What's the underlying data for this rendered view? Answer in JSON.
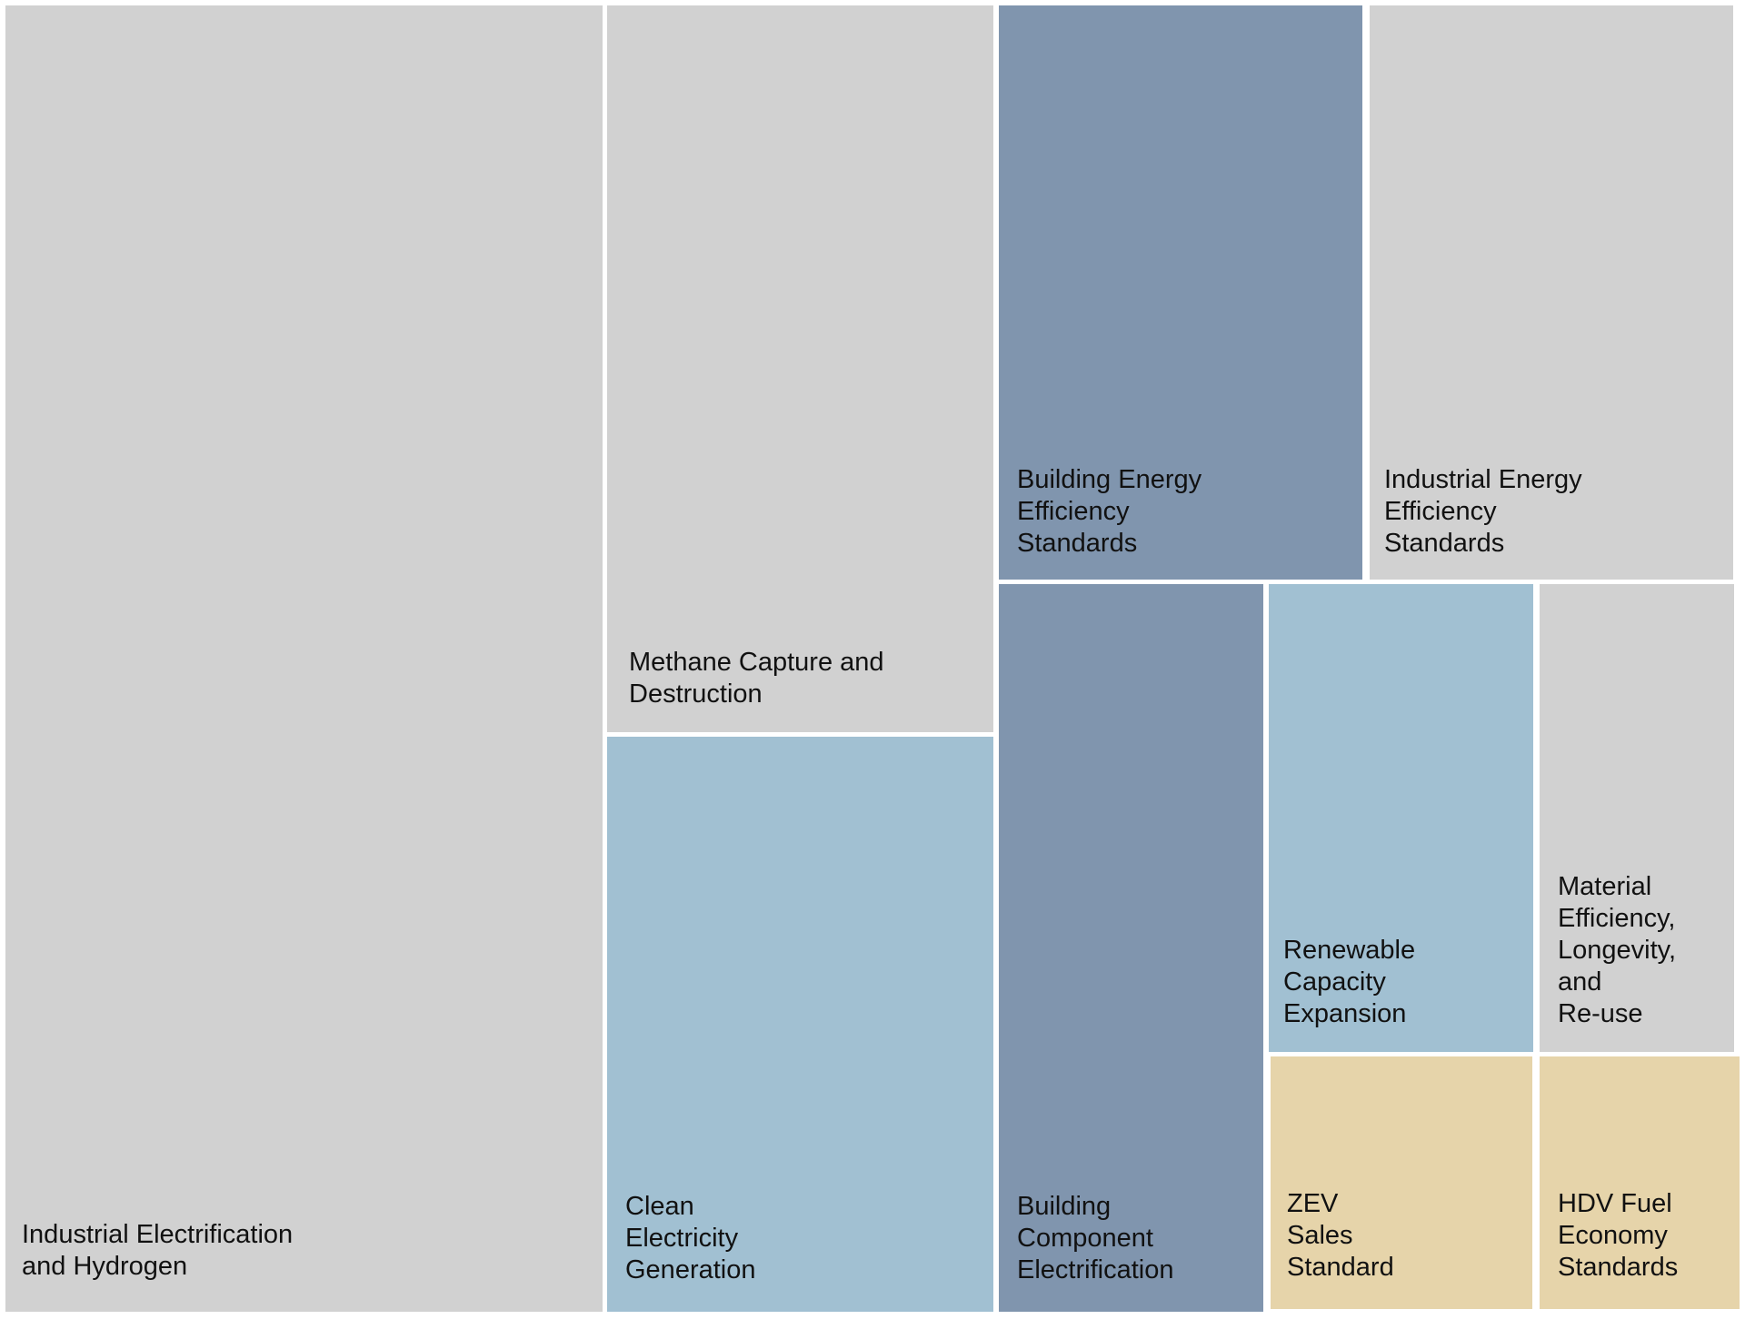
{
  "chart_data": {
    "type": "treemap",
    "title": "",
    "colors": {
      "gray": "#d1d1d1",
      "light_blue": "#a1c0d2",
      "slate_blue": "#8095ae",
      "tan": "#e6d4aa"
    },
    "items": [
      {
        "name": "Industrial Electrification\nand Hydrogen",
        "color": "#d1d1d1"
      },
      {
        "name": "Methane Capture and\nDestruction",
        "color": "#d1d1d1"
      },
      {
        "name": "Clean\nElectricity\nGeneration",
        "color": "#a1c0d2"
      },
      {
        "name": "Building Energy\nEfficiency\nStandards",
        "color": "#8095ae"
      },
      {
        "name": "Industrial Energy\nEfficiency\nStandards",
        "color": "#d1d1d1"
      },
      {
        "name": "Building\nComponent\nElectrification",
        "color": "#8095ae"
      },
      {
        "name": "Renewable\nCapacity\nExpansion",
        "color": "#a1c0d2"
      },
      {
        "name": "Material\nEfficiency,\nLongevity,\nand\nRe-use",
        "color": "#d1d1d1"
      },
      {
        "name": "ZEV\nSales\nStandard",
        "color": "#e6d4aa"
      },
      {
        "name": "HDV Fuel\nEconomy\nStandards",
        "color": "#e6d4aa"
      }
    ]
  }
}
